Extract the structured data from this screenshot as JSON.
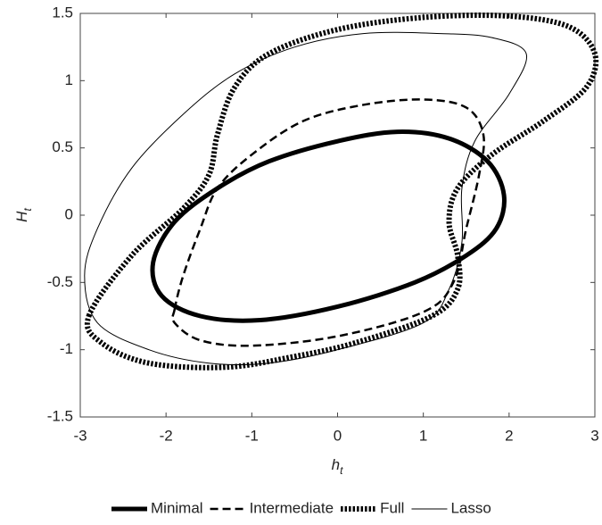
{
  "chart_data": {
    "type": "line",
    "xlabel": "h",
    "xlabel_subscript": "t",
    "ylabel": "H",
    "ylabel_subscript": "t",
    "xlim": [
      -3,
      3
    ],
    "xticks": [
      -3,
      -2,
      -1,
      0,
      1,
      2,
      3
    ],
    "ylim": [
      -1.5,
      1.5
    ],
    "yticks": [
      -1.5,
      -1,
      -0.5,
      0,
      0.5,
      1,
      1.5
    ],
    "legend": "bottom",
    "series": [
      {
        "name": "Minimal",
        "color": "#000000",
        "style": "solid",
        "line_width": 5,
        "x": [
          -2.15,
          -1.9,
          -1.4,
          -0.8,
          0,
          0.7,
          1.3,
          1.75,
          1.94,
          1.85,
          1.5,
          0.9,
          0,
          -0.9,
          -1.6,
          -2.05,
          -2.15
        ],
        "values": [
          -0.35,
          -0.05,
          0.2,
          0.4,
          0.55,
          0.62,
          0.57,
          0.4,
          0.15,
          -0.1,
          -0.3,
          -0.5,
          -0.68,
          -0.78,
          -0.75,
          -0.6,
          -0.35
        ]
      },
      {
        "name": "Intermediate",
        "color": "#000000",
        "style": "dashed",
        "line_width": 2.5,
        "x": [
          -1.9,
          -1.8,
          -1.6,
          -1.4,
          -1.0,
          -0.4,
          0.3,
          1.0,
          1.5,
          1.7,
          1.65,
          1.5,
          1.35,
          1.0,
          0,
          -1.0,
          -1.6,
          -1.9,
          -1.9
        ],
        "values": [
          -0.7,
          -0.45,
          -0.1,
          0.2,
          0.45,
          0.7,
          0.82,
          0.86,
          0.8,
          0.6,
          0.3,
          -0.1,
          -0.5,
          -0.72,
          -0.9,
          -0.97,
          -0.93,
          -0.8,
          -0.7
        ]
      },
      {
        "name": "Full",
        "color": "#000000",
        "style": "dotted",
        "line_width": 6,
        "x": [
          -2.9,
          -2.4,
          -1.8,
          -1.5,
          -1.4,
          -1.2,
          -0.8,
          0,
          1,
          2,
          2.7,
          3.0,
          2.9,
          2.4,
          1.8,
          1.4,
          1.3,
          1.4,
          1.4,
          1.1,
          0.2,
          -0.5,
          -1.3,
          -2.2,
          -2.75,
          -2.9
        ],
        "values": [
          -0.75,
          -0.3,
          0.05,
          0.3,
          0.6,
          0.95,
          1.2,
          1.38,
          1.47,
          1.48,
          1.4,
          1.2,
          0.95,
          0.7,
          0.45,
          0.2,
          -0.05,
          -0.3,
          -0.55,
          -0.75,
          -0.95,
          -1.05,
          -1.13,
          -1.1,
          -0.95,
          -0.75
        ]
      },
      {
        "name": "Lasso",
        "color": "#000000",
        "style": "solid",
        "line_width": 1,
        "x": [
          -2.95,
          -2.8,
          -2.4,
          -1.8,
          -1.2,
          -0.5,
          0.3,
          1.2,
          1.8,
          2.2,
          2.0,
          1.6,
          1.45,
          1.45,
          1.3,
          1.0,
          0,
          -0.8,
          -1.5,
          -2.2,
          -2.8,
          -2.95
        ],
        "values": [
          -0.45,
          -0.1,
          0.35,
          0.75,
          1.05,
          1.25,
          1.35,
          1.35,
          1.32,
          1.2,
          0.9,
          0.55,
          0.2,
          -0.2,
          -0.55,
          -0.8,
          -1.0,
          -1.1,
          -1.1,
          -1.0,
          -0.8,
          -0.45
        ]
      }
    ]
  }
}
